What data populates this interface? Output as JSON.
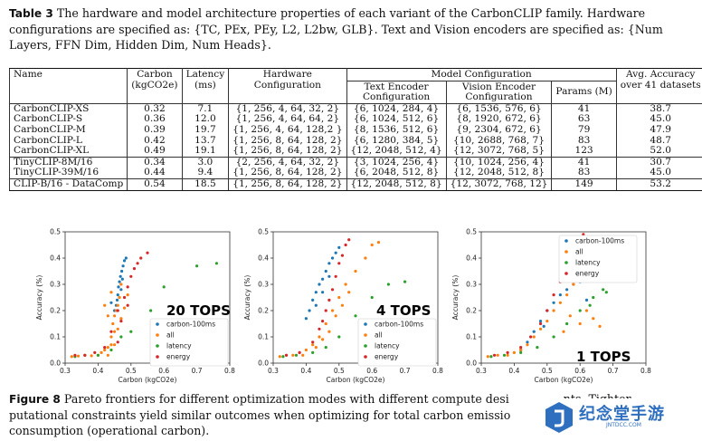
{
  "table_caption": {
    "label": "Table 3",
    "text": "The hardware and model architecture properties of each variant of the CarbonCLIP family. Hardware configurations are specified as: {TC, PEx, PEy, L2, L2bw, GLB}. Text and Vision encoders are specified as: {Num Layers, FFN Dim, Hidden Dim, Num Heads}."
  },
  "table": {
    "headers": {
      "name": "Name",
      "carbon": [
        "Carbon",
        "(kgCO2e)"
      ],
      "latency": [
        "Latency",
        "(ms)"
      ],
      "hardware": [
        "Hardware",
        "Configuration"
      ],
      "model_config": "Model Configuration",
      "text_enc": [
        "Text Encoder",
        "Configuration"
      ],
      "vision_enc": [
        "Vision Encoder",
        "Configuration"
      ],
      "params": "Params (M)",
      "accuracy": [
        "Avg. Accuracy",
        "over 41 datasets"
      ]
    },
    "rows": [
      {
        "name": "CarbonCLIP-XS",
        "carbon": "0.32",
        "latency": "7.1",
        "hw": "{1, 256, 4, 64, 32, 2}",
        "text": "{6, 1024, 284, 4}",
        "vision": "{6, 1536, 576, 6}",
        "params": "41",
        "acc": "38.7"
      },
      {
        "name": "CarbonCLIP-S",
        "carbon": "0.36",
        "latency": "12.0",
        "hw": "{1, 256, 4, 64, 64, 2}",
        "text": "{6, 1024, 512, 6}",
        "vision": "{8, 1920, 672, 6}",
        "params": "63",
        "acc": "45.0"
      },
      {
        "name": "CarbonCLIP-M",
        "carbon": "0.39",
        "latency": "19.7",
        "hw": "{1, 256, 4, 64, 128,2 }",
        "text": "{8, 1536, 512, 6}",
        "vision": "{9, 2304, 672, 6}",
        "params": "79",
        "acc": "47.9"
      },
      {
        "name": "CarbonCLIP-L",
        "carbon": "0.42",
        "latency": "13.7",
        "hw": "{1, 256, 8, 64, 128, 2}",
        "text": "{6, 1280, 384, 5}",
        "vision": "{10, 2688, 768, 7}",
        "params": "83",
        "acc": "48.7"
      },
      {
        "name": "CarbonCLIP-XL",
        "carbon": "0.49",
        "latency": "19.1",
        "hw": "{1, 256, 8, 64, 128, 2}",
        "text": "{12, 2048, 512, 4}",
        "vision": "{12, 3072, 768, 5}",
        "params": "123",
        "acc": "52.0"
      },
      {
        "name": "TinyCLIP-8M/16",
        "carbon": "0.34",
        "latency": "3.0",
        "hw": "{2, 256, 4, 64, 32, 2}",
        "text": "{3, 1024, 256, 4}",
        "vision": "{10, 1024, 256, 4}",
        "params": "41",
        "acc": "30.7"
      },
      {
        "name": "TinyCLIP-39M/16",
        "carbon": "0.44",
        "latency": "9.4",
        "hw": "{1, 256, 8, 64, 128, 2}",
        "text": "{6, 2048, 512, 8}",
        "vision": "{12, 2048, 512, 8}",
        "params": "83",
        "acc": "45.0"
      },
      {
        "name": "CLIP-B/16 - DataComp",
        "carbon": "0.54",
        "latency": "18.5",
        "hw": "{1, 256, 8, 64, 128, 2}",
        "text": "{12, 2048, 512, 8}",
        "vision": "{12, 3072, 768, 12}",
        "params": "149",
        "acc": "53.2"
      }
    ]
  },
  "figure_caption": {
    "label": "Figure 8",
    "text": "Pareto frontiers for different optimization modes with different compute desi",
    "text_tail": "nts. Tighter",
    "line2": "putational constraints yield similar outcomes when optimizing for total carbon emissio",
    "line3": "consumption (operational carbon)."
  },
  "watermark": {
    "text": "纪念堂手游",
    "sub": "JNTDCC.COM"
  },
  "colors": {
    "carbon-100ms": "#1f77b4",
    "all": "#ff7f0e",
    "latency": "#2ca02c",
    "energy": "#d62728"
  },
  "chart_data": [
    {
      "type": "scatter",
      "title": "",
      "annotation": "20 TOPS",
      "xlabel": "Carbon (kgCO2e)",
      "ylabel": "Accuracy (%)",
      "xlim": [
        0.3,
        0.8
      ],
      "ylim": [
        0.0,
        0.5
      ],
      "xticks": [
        "0.3",
        "0.4",
        "0.5",
        "0.6",
        "0.7",
        "0.8"
      ],
      "yticks": [
        "0.0",
        "0.1",
        "0.2",
        "0.3",
        "0.4",
        "0.5"
      ],
      "legend_position": "lower-right",
      "series": [
        {
          "name": "carbon-100ms",
          "color": "#1f77b4",
          "points": [
            [
              0.455,
              0.22
            ],
            [
              0.46,
              0.26
            ],
            [
              0.462,
              0.29
            ],
            [
              0.465,
              0.31
            ],
            [
              0.468,
              0.33
            ],
            [
              0.472,
              0.35
            ],
            [
              0.476,
              0.37
            ],
            [
              0.48,
              0.39
            ],
            [
              0.485,
              0.4
            ],
            [
              0.458,
              0.24
            ],
            [
              0.47,
              0.28
            ],
            [
              0.474,
              0.32
            ],
            [
              0.44,
              0.23
            ],
            [
              0.45,
              0.2
            ]
          ]
        },
        {
          "name": "all",
          "color": "#ff7f0e",
          "points": [
            [
              0.32,
              0.025
            ],
            [
              0.34,
              0.027
            ],
            [
              0.36,
              0.03
            ],
            [
              0.38,
              0.028
            ],
            [
              0.4,
              0.03
            ],
            [
              0.41,
              0.04
            ],
            [
              0.42,
              0.05
            ],
            [
              0.43,
              0.06
            ],
            [
              0.44,
              0.1
            ],
            [
              0.445,
              0.15
            ],
            [
              0.45,
              0.18
            ],
            [
              0.455,
              0.2
            ],
            [
              0.46,
              0.22
            ],
            [
              0.465,
              0.25
            ],
            [
              0.47,
              0.3
            ],
            [
              0.44,
              0.07
            ],
            [
              0.43,
              0.03
            ],
            [
              0.45,
              0.07
            ],
            [
              0.46,
              0.13
            ],
            [
              0.47,
              0.17
            ],
            [
              0.48,
              0.21
            ],
            [
              0.49,
              0.26
            ],
            [
              0.43,
              0.18
            ],
            [
              0.42,
              0.22
            ],
            [
              0.44,
              0.27
            ],
            [
              0.45,
              0.12
            ]
          ]
        },
        {
          "name": "latency",
          "color": "#2ca02c",
          "points": [
            [
              0.33,
              0.025
            ],
            [
              0.36,
              0.03
            ],
            [
              0.4,
              0.03
            ],
            [
              0.44,
              0.05
            ],
            [
              0.47,
              0.1
            ],
            [
              0.5,
              0.12
            ],
            [
              0.56,
              0.2
            ],
            [
              0.6,
              0.29
            ],
            [
              0.7,
              0.37
            ],
            [
              0.76,
              0.38
            ]
          ]
        },
        {
          "name": "energy",
          "color": "#d62728",
          "points": [
            [
              0.33,
              0.03
            ],
            [
              0.36,
              0.03
            ],
            [
              0.39,
              0.04
            ],
            [
              0.42,
              0.06
            ],
            [
              0.44,
              0.12
            ],
            [
              0.46,
              0.2
            ],
            [
              0.48,
              0.25
            ],
            [
              0.49,
              0.29
            ],
            [
              0.5,
              0.33
            ],
            [
              0.51,
              0.36
            ],
            [
              0.52,
              0.38
            ],
            [
              0.53,
              0.4
            ],
            [
              0.55,
              0.42
            ],
            [
              0.47,
              0.16
            ],
            [
              0.46,
              0.08
            ],
            [
              0.49,
              0.22
            ]
          ]
        }
      ]
    },
    {
      "type": "scatter",
      "title": "",
      "annotation": "4 TOPS",
      "xlabel": "Carbon (kgCO2e)",
      "ylabel": "Accuracy (%)",
      "xlim": [
        0.3,
        0.8
      ],
      "ylim": [
        0.0,
        0.5
      ],
      "xticks": [
        "0.3",
        "0.4",
        "0.5",
        "0.6",
        "0.7",
        "0.8"
      ],
      "yticks": [
        "0.0",
        "0.1",
        "0.2",
        "0.3",
        "0.4",
        "0.5"
      ],
      "legend_position": "lower-right",
      "series": [
        {
          "name": "carbon-100ms",
          "color": "#1f77b4",
          "points": [
            [
              0.4,
              0.17
            ],
            [
              0.41,
              0.2
            ],
            [
              0.42,
              0.24
            ],
            [
              0.43,
              0.27
            ],
            [
              0.44,
              0.3
            ],
            [
              0.45,
              0.32
            ],
            [
              0.46,
              0.35
            ],
            [
              0.47,
              0.38
            ],
            [
              0.48,
              0.4
            ],
            [
              0.49,
              0.42
            ],
            [
              0.5,
              0.44
            ],
            [
              0.43,
              0.22
            ],
            [
              0.45,
              0.27
            ],
            [
              0.47,
              0.33
            ]
          ]
        },
        {
          "name": "all",
          "color": "#ff7f0e",
          "points": [
            [
              0.32,
              0.025
            ],
            [
              0.34,
              0.03
            ],
            [
              0.36,
              0.03
            ],
            [
              0.38,
              0.04
            ],
            [
              0.4,
              0.05
            ],
            [
              0.42,
              0.07
            ],
            [
              0.44,
              0.1
            ],
            [
              0.46,
              0.15
            ],
            [
              0.48,
              0.2
            ],
            [
              0.5,
              0.25
            ],
            [
              0.52,
              0.3
            ],
            [
              0.55,
              0.35
            ],
            [
              0.58,
              0.4
            ],
            [
              0.6,
              0.45
            ],
            [
              0.62,
              0.46
            ],
            [
              0.47,
              0.12
            ],
            [
              0.49,
              0.18
            ],
            [
              0.43,
              0.06
            ],
            [
              0.45,
              0.09
            ],
            [
              0.39,
              0.03
            ],
            [
              0.51,
              0.22
            ],
            [
              0.53,
              0.27
            ]
          ]
        },
        {
          "name": "latency",
          "color": "#2ca02c",
          "points": [
            [
              0.33,
              0.025
            ],
            [
              0.37,
              0.03
            ],
            [
              0.42,
              0.04
            ],
            [
              0.46,
              0.06
            ],
            [
              0.5,
              0.1
            ],
            [
              0.55,
              0.18
            ],
            [
              0.6,
              0.25
            ],
            [
              0.65,
              0.3
            ],
            [
              0.7,
              0.31
            ]
          ]
        },
        {
          "name": "energy",
          "color": "#d62728",
          "points": [
            [
              0.34,
              0.03
            ],
            [
              0.38,
              0.04
            ],
            [
              0.42,
              0.08
            ],
            [
              0.44,
              0.13
            ],
            [
              0.46,
              0.2
            ],
            [
              0.48,
              0.28
            ],
            [
              0.49,
              0.33
            ],
            [
              0.5,
              0.38
            ],
            [
              0.51,
              0.41
            ],
            [
              0.52,
              0.45
            ],
            [
              0.53,
              0.47
            ],
            [
              0.47,
              0.24
            ],
            [
              0.45,
              0.16
            ]
          ]
        }
      ]
    },
    {
      "type": "scatter",
      "title": "",
      "annotation": "1 TOPS",
      "xlabel": "Carbon (kgCO2e)",
      "ylabel": "Accuracy (%)",
      "xlim": [
        0.3,
        0.8
      ],
      "ylim": [
        0.0,
        0.5
      ],
      "xticks": [
        "0.3",
        "0.4",
        "0.5",
        "0.6",
        "0.7",
        "0.8"
      ],
      "yticks": [
        "0.0",
        "0.1",
        "0.2",
        "0.3",
        "0.4",
        "0.5"
      ],
      "legend_position": "upper-right",
      "series": [
        {
          "name": "carbon-100ms",
          "color": "#1f77b4",
          "points": [
            [
              0.42,
              0.05
            ],
            [
              0.44,
              0.08
            ],
            [
              0.46,
              0.12
            ],
            [
              0.48,
              0.16
            ],
            [
              0.5,
              0.2
            ],
            [
              0.52,
              0.23
            ],
            [
              0.54,
              0.26
            ],
            [
              0.56,
              0.28
            ],
            [
              0.58,
              0.3
            ],
            [
              0.6,
              0.31
            ],
            [
              0.62,
              0.24
            ],
            [
              0.49,
              0.14
            ]
          ]
        },
        {
          "name": "all",
          "color": "#ff7f0e",
          "points": [
            [
              0.32,
              0.025
            ],
            [
              0.35,
              0.03
            ],
            [
              0.38,
              0.03
            ],
            [
              0.4,
              0.04
            ],
            [
              0.42,
              0.05
            ],
            [
              0.44,
              0.07
            ],
            [
              0.46,
              0.1
            ],
            [
              0.48,
              0.13
            ],
            [
              0.5,
              0.16
            ],
            [
              0.52,
              0.2
            ],
            [
              0.54,
              0.23
            ],
            [
              0.56,
              0.26
            ],
            [
              0.58,
              0.3
            ],
            [
              0.6,
              0.15
            ],
            [
              0.62,
              0.2
            ],
            [
              0.64,
              0.17
            ],
            [
              0.66,
              0.14
            ],
            [
              0.55,
              0.12
            ],
            [
              0.57,
              0.18
            ]
          ]
        },
        {
          "name": "latency",
          "color": "#2ca02c",
          "points": [
            [
              0.33,
              0.025
            ],
            [
              0.37,
              0.03
            ],
            [
              0.42,
              0.04
            ],
            [
              0.47,
              0.06
            ],
            [
              0.52,
              0.1
            ],
            [
              0.56,
              0.15
            ],
            [
              0.6,
              0.2
            ],
            [
              0.64,
              0.25
            ],
            [
              0.67,
              0.28
            ],
            [
              0.68,
              0.27
            ],
            [
              0.63,
              0.22
            ]
          ]
        },
        {
          "name": "energy",
          "color": "#d62728",
          "points": [
            [
              0.34,
              0.03
            ],
            [
              0.38,
              0.04
            ],
            [
              0.42,
              0.06
            ],
            [
              0.45,
              0.1
            ],
            [
              0.48,
              0.15
            ],
            [
              0.5,
              0.2
            ],
            [
              0.52,
              0.26
            ],
            [
              0.54,
              0.31
            ],
            [
              0.56,
              0.35
            ],
            [
              0.58,
              0.38
            ],
            [
              0.6,
              0.42
            ],
            [
              0.62,
              0.44
            ],
            [
              0.63,
              0.47
            ],
            [
              0.61,
              0.49
            ],
            [
              0.57,
              0.34
            ]
          ]
        }
      ]
    }
  ]
}
